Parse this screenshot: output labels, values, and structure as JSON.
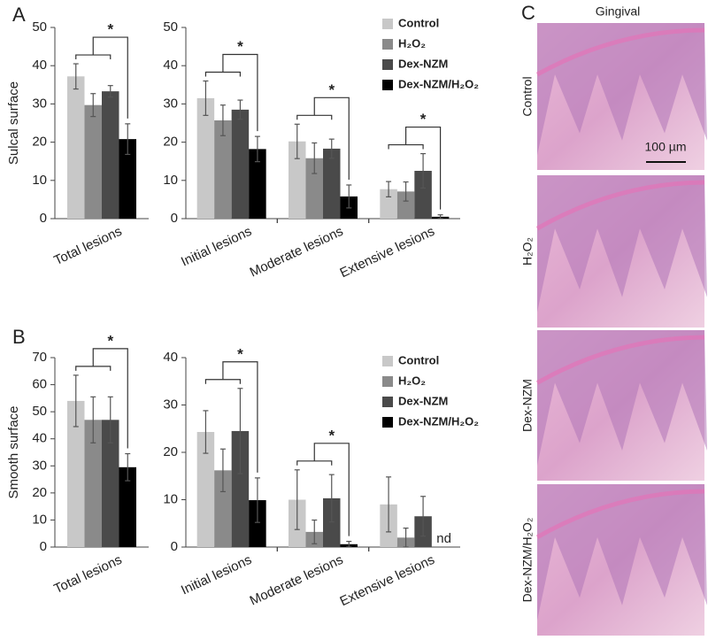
{
  "chart_data": [
    {
      "type": "bar",
      "panel_label": "A",
      "y_label": "Sulcal surface",
      "categories": [
        "Total lesions"
      ],
      "series": [
        {
          "color": "#c8c8c8",
          "values": [
            37.2
          ],
          "errors": [
            3.3
          ]
        },
        {
          "color": "#8a8a8a",
          "values": [
            29.7
          ],
          "errors": [
            3.0
          ]
        },
        {
          "color": "#4a4a4a",
          "values": [
            33.3
          ],
          "errors": [
            1.5
          ]
        },
        {
          "color": "#000000",
          "values": [
            20.8
          ],
          "errors": [
            4.0
          ]
        }
      ],
      "significance": [
        "*"
      ],
      "ylim": [
        0,
        50
      ],
      "yticks": [
        0,
        10,
        20,
        30,
        40,
        50
      ],
      "grid": false
    },
    {
      "type": "bar",
      "categories": [
        "Initial lesions",
        "Moderate lesions",
        "Extensive lesions"
      ],
      "series": [
        {
          "name": "Control",
          "color": "#c8c8c8",
          "values": [
            31.5,
            20.2,
            7.7
          ],
          "errors": [
            4.5,
            4.5,
            2.0
          ]
        },
        {
          "name": "H₂O₂",
          "color": "#8a8a8a",
          "values": [
            25.7,
            15.8,
            7.1
          ],
          "errors": [
            4.0,
            4.0,
            2.5
          ]
        },
        {
          "name": "Dex-NZM",
          "color": "#4a4a4a",
          "values": [
            28.5,
            18.3,
            12.5
          ],
          "errors": [
            2.5,
            2.5,
            4.5
          ]
        },
        {
          "name": "Dex-NZM/H₂O₂",
          "color": "#000000",
          "values": [
            18.2,
            5.8,
            0.5
          ],
          "errors": [
            3.3,
            3.0,
            0.5
          ]
        }
      ],
      "significance": [
        "*",
        "*",
        "*"
      ],
      "legend": "upper right",
      "ylim": [
        0,
        50
      ],
      "yticks": [
        0,
        10,
        20,
        30,
        40,
        50
      ],
      "grid": false
    },
    {
      "type": "bar",
      "panel_label": "B",
      "y_label": "Smooth surface",
      "categories": [
        "Total lesions"
      ],
      "series": [
        {
          "color": "#c8c8c8",
          "values": [
            54
          ],
          "errors": [
            9.5
          ]
        },
        {
          "color": "#8a8a8a",
          "values": [
            47
          ],
          "errors": [
            8.5
          ]
        },
        {
          "color": "#4a4a4a",
          "values": [
            47
          ],
          "errors": [
            8.5
          ]
        },
        {
          "color": "#000000",
          "values": [
            29.5
          ],
          "errors": [
            5.0
          ]
        }
      ],
      "significance": [
        "*"
      ],
      "ylim": [
        0,
        70
      ],
      "yticks": [
        0,
        10,
        20,
        30,
        40,
        50,
        60,
        70
      ],
      "grid": false
    },
    {
      "type": "bar",
      "categories": [
        "Initial lesions",
        "Moderate lesions",
        "Extensive lesions"
      ],
      "series": [
        {
          "name": "Control",
          "color": "#c8c8c8",
          "values": [
            24.3,
            10.0,
            9.0
          ],
          "errors": [
            4.5,
            6.3,
            5.8
          ]
        },
        {
          "name": "H₂O₂",
          "color": "#8a8a8a",
          "values": [
            16.2,
            3.2,
            2.0
          ],
          "errors": [
            4.5,
            2.5,
            2.0
          ]
        },
        {
          "name": "Dex-NZM",
          "color": "#4a4a4a",
          "values": [
            24.5,
            10.3,
            6.5
          ],
          "errors": [
            9.0,
            5.0,
            4.2
          ]
        },
        {
          "name": "Dex-NZM/H₂O₂",
          "color": "#000000",
          "values": [
            9.9,
            0.6,
            null
          ],
          "errors": [
            4.7,
            0.6,
            null
          ],
          "value_labels": [
            null,
            null,
            "nd"
          ]
        }
      ],
      "significance": [
        "*",
        "*",
        null
      ],
      "legend": "upper right",
      "ylim": [
        0,
        40
      ],
      "yticks": [
        0,
        10,
        20,
        30,
        40
      ],
      "grid": false
    }
  ],
  "panel_c": {
    "label": "C",
    "title": "Gingival",
    "rows": [
      "Control",
      "H₂O₂",
      "Dex-NZM",
      "Dex-NZM/H₂O₂"
    ],
    "scale_bar": "100 µm"
  }
}
